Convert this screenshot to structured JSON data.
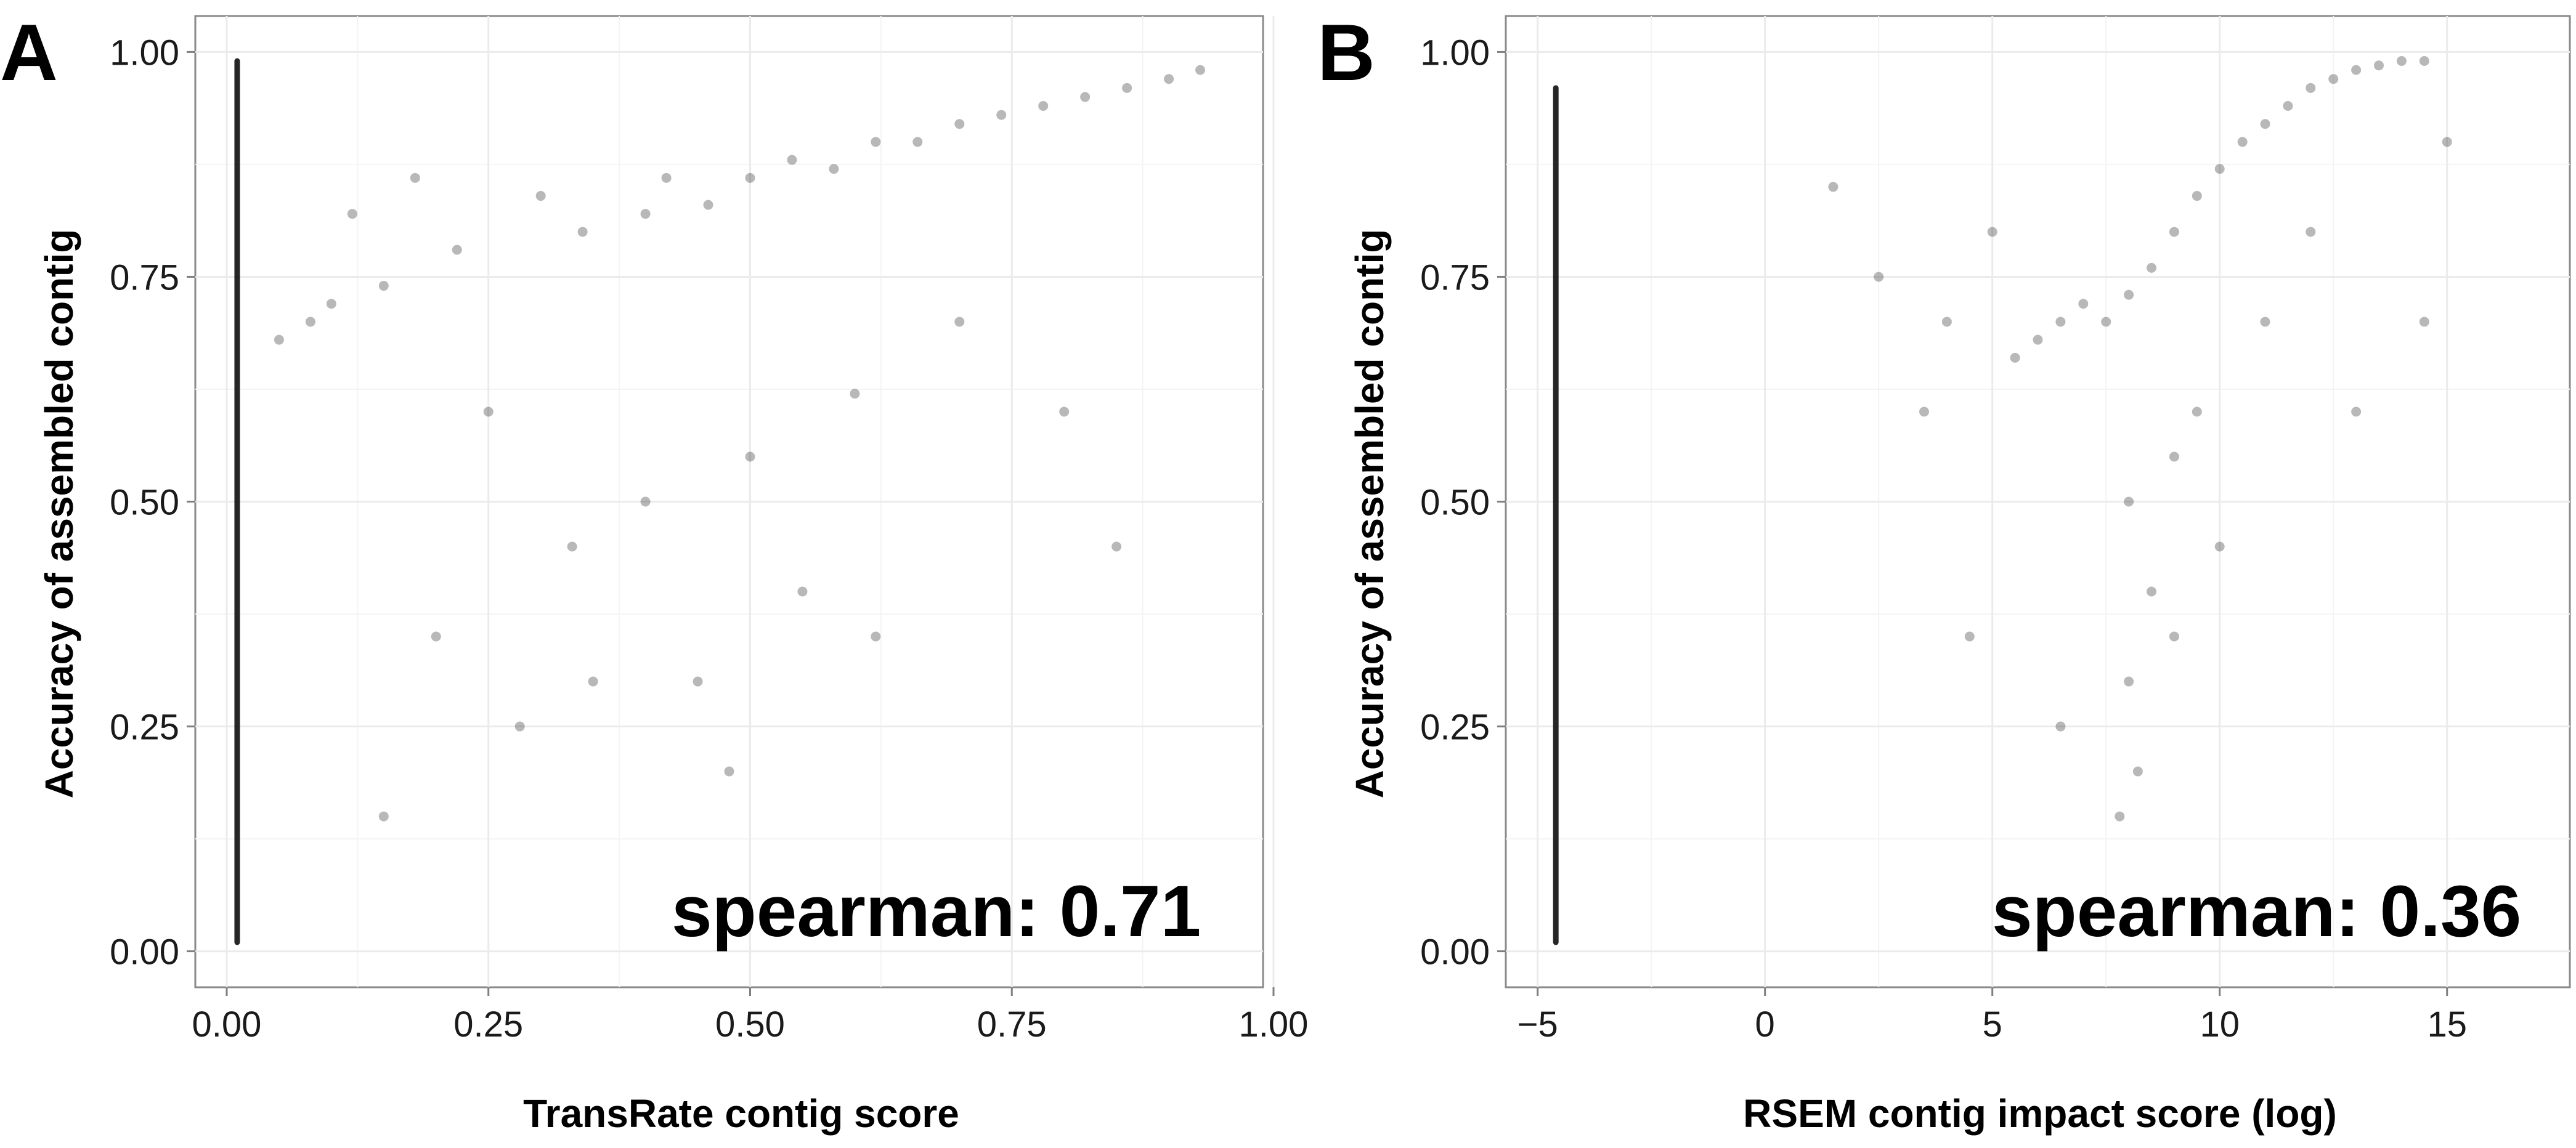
{
  "chart_data": [
    {
      "panel": "A",
      "type": "scatter",
      "title": "",
      "xlabel": "TransRate contig score",
      "ylabel": "Accuracy of assembled contig",
      "xlim": [
        -0.03,
        0.99
      ],
      "ylim": [
        -0.04,
        1.04
      ],
      "x_ticks": [
        0.0,
        0.25,
        0.5,
        0.75,
        1.0
      ],
      "x_tick_labels": [
        "0.00",
        "0.25",
        "0.50",
        "0.75",
        "1.00"
      ],
      "y_ticks": [
        0.0,
        0.25,
        0.5,
        0.75,
        1.0
      ],
      "y_tick_labels": [
        "0.00",
        "0.25",
        "0.50",
        "0.75",
        "1.00"
      ],
      "grid": true,
      "annotation": "spearman:  0.71",
      "spearman": 0.71,
      "point_color": "#000000",
      "point_opacity": 0.28,
      "vertical_cluster": {
        "x": 0.01,
        "y_range": [
          0.01,
          0.99
        ]
      },
      "points": [
        [
          0.12,
          0.82
        ],
        [
          0.18,
          0.86
        ],
        [
          0.22,
          0.78
        ],
        [
          0.3,
          0.84
        ],
        [
          0.34,
          0.8
        ],
        [
          0.4,
          0.82
        ],
        [
          0.42,
          0.86
        ],
        [
          0.46,
          0.83
        ],
        [
          0.5,
          0.86
        ],
        [
          0.54,
          0.88
        ],
        [
          0.58,
          0.87
        ],
        [
          0.62,
          0.9
        ],
        [
          0.66,
          0.9
        ],
        [
          0.7,
          0.92
        ],
        [
          0.74,
          0.93
        ],
        [
          0.78,
          0.94
        ],
        [
          0.82,
          0.95
        ],
        [
          0.86,
          0.96
        ],
        [
          0.9,
          0.97
        ],
        [
          0.93,
          0.98
        ],
        [
          0.05,
          0.68
        ],
        [
          0.08,
          0.7
        ],
        [
          0.1,
          0.72
        ],
        [
          0.15,
          0.74
        ],
        [
          0.25,
          0.6
        ],
        [
          0.33,
          0.45
        ],
        [
          0.4,
          0.5
        ],
        [
          0.45,
          0.3
        ],
        [
          0.5,
          0.55
        ],
        [
          0.55,
          0.4
        ],
        [
          0.6,
          0.62
        ],
        [
          0.2,
          0.35
        ],
        [
          0.28,
          0.25
        ],
        [
          0.35,
          0.3
        ],
        [
          0.48,
          0.2
        ],
        [
          0.62,
          0.35
        ],
        [
          0.7,
          0.7
        ],
        [
          0.8,
          0.6
        ],
        [
          0.85,
          0.45
        ],
        [
          0.15,
          0.15
        ]
      ]
    },
    {
      "panel": "B",
      "type": "scatter",
      "title": "",
      "xlabel": "RSEM contig impact score (log)",
      "ylabel": "Accuracy of assembled contig",
      "xlim": [
        -5.7,
        17.7
      ],
      "ylim": [
        -0.04,
        1.04
      ],
      "x_ticks": [
        -5,
        0,
        5,
        10,
        15
      ],
      "x_tick_labels": [
        "−5",
        "0",
        "5",
        "10",
        "15"
      ],
      "y_ticks": [
        0.0,
        0.25,
        0.5,
        0.75,
        1.0
      ],
      "y_tick_labels": [
        "0.00",
        "0.25",
        "0.50",
        "0.75",
        "1.00"
      ],
      "grid": true,
      "annotation": "spearman:  0.36",
      "spearman": 0.36,
      "point_color": "#000000",
      "point_opacity": 0.28,
      "vertical_cluster": {
        "x": -4.6,
        "y_range": [
          0.01,
          0.96
        ]
      },
      "points": [
        [
          7.0,
          0.72
        ],
        [
          7.5,
          0.7
        ],
        [
          8.0,
          0.73
        ],
        [
          8.5,
          0.76
        ],
        [
          9.0,
          0.8
        ],
        [
          9.5,
          0.84
        ],
        [
          10.0,
          0.87
        ],
        [
          10.5,
          0.9
        ],
        [
          11.0,
          0.92
        ],
        [
          11.5,
          0.94
        ],
        [
          12.0,
          0.96
        ],
        [
          12.5,
          0.97
        ],
        [
          13.0,
          0.98
        ],
        [
          13.5,
          0.985
        ],
        [
          14.0,
          0.99
        ],
        [
          14.5,
          0.99
        ],
        [
          5.5,
          0.66
        ],
        [
          6.0,
          0.68
        ],
        [
          6.5,
          0.7
        ],
        [
          8.0,
          0.5
        ],
        [
          8.5,
          0.4
        ],
        [
          8.0,
          0.3
        ],
        [
          9.0,
          0.55
        ],
        [
          9.5,
          0.6
        ],
        [
          8.2,
          0.2
        ],
        [
          7.8,
          0.15
        ],
        [
          9.0,
          0.35
        ],
        [
          10.0,
          0.45
        ],
        [
          11.0,
          0.7
        ],
        [
          12.0,
          0.8
        ],
        [
          13.0,
          0.6
        ],
        [
          3.5,
          0.6
        ],
        [
          4.0,
          0.7
        ],
        [
          2.5,
          0.75
        ],
        [
          1.5,
          0.85
        ],
        [
          4.5,
          0.35
        ],
        [
          6.5,
          0.25
        ],
        [
          5.0,
          0.8
        ],
        [
          14.5,
          0.7
        ],
        [
          15.0,
          0.9
        ]
      ]
    }
  ]
}
